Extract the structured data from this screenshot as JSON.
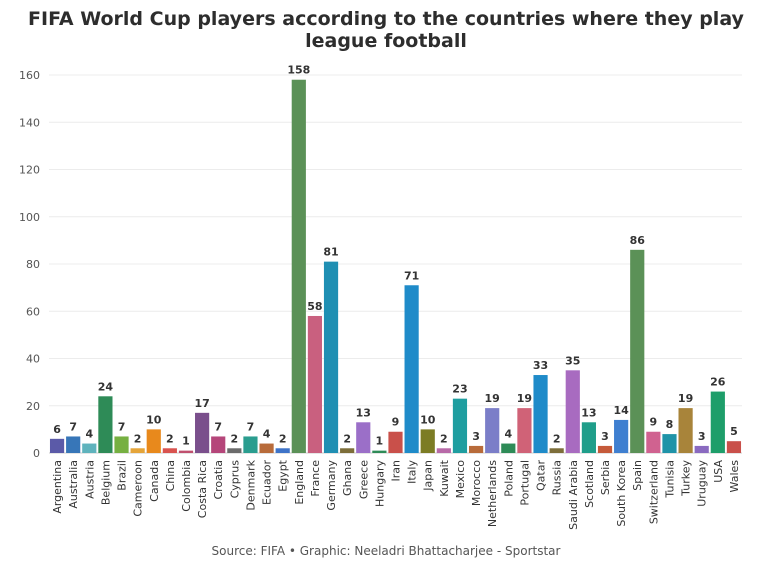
{
  "chart_data": {
    "type": "bar",
    "title": "FIFA World Cup players according to the countries where they play league football",
    "source": "Source: FIFA • Graphic: Neeladri Bhattacharjee - Sportstar",
    "xlabel": "",
    "ylabel": "",
    "ylim": [
      0,
      160
    ],
    "yticks": [
      0,
      20,
      40,
      60,
      80,
      100,
      120,
      140,
      160
    ],
    "grid": true,
    "legend": "none",
    "categories": [
      "Argentina",
      "Australia",
      "Austria",
      "Belgium",
      "Brazil",
      "Cameroon",
      "Canada",
      "China",
      "Colombia",
      "Costa Rica",
      "Croatia",
      "Cyprus",
      "Denmark",
      "Ecuador",
      "Egypt",
      "England",
      "France",
      "Germany",
      "Ghana",
      "Greece",
      "Hungary",
      "Iran",
      "Italy",
      "Japan",
      "Kuwait",
      "Mexico",
      "Morocco",
      "Netherlands",
      "Poland",
      "Portugal",
      "Qatar",
      "Russia",
      "Saudi Arabia",
      "Scotland",
      "Serbia",
      "South Korea",
      "Spain",
      "Switzerland",
      "Tunisia",
      "Turkey",
      "Uruguay",
      "USA",
      "Wales"
    ],
    "values": [
      6,
      7,
      4,
      24,
      7,
      2,
      10,
      2,
      1,
      17,
      7,
      2,
      7,
      4,
      2,
      158,
      58,
      81,
      2,
      13,
      1,
      9,
      71,
      10,
      2,
      23,
      3,
      19,
      4,
      19,
      33,
      2,
      35,
      13,
      3,
      14,
      86,
      9,
      8,
      19,
      3,
      26,
      5
    ],
    "colors": [
      "#5b5aa8",
      "#3776b8",
      "#5fb3bd",
      "#2e8b57",
      "#76b041",
      "#e5a53a",
      "#e8891c",
      "#d9534f",
      "#c0506f",
      "#7a4f8c",
      "#b5467a",
      "#6b6b6b",
      "#2a9d8f",
      "#b86b3a",
      "#3e73c8",
      "#5b9157",
      "#c9607f",
      "#1f8fb3",
      "#7d6e3a",
      "#9b6fc8",
      "#2e8b57",
      "#c9504a",
      "#1f8bc9",
      "#7c7c24",
      "#b86aa8",
      "#1f9ea0",
      "#b86b3a",
      "#7b7ec8",
      "#2e8b57",
      "#d06277",
      "#1f8bc9",
      "#7d6e3a",
      "#a86bc0",
      "#1f9e8a",
      "#c55a3a",
      "#3f7fd0",
      "#5b9157",
      "#d06290",
      "#1f93a8",
      "#a8843a",
      "#8a6ac0",
      "#1e9e6a",
      "#c9504a"
    ]
  }
}
